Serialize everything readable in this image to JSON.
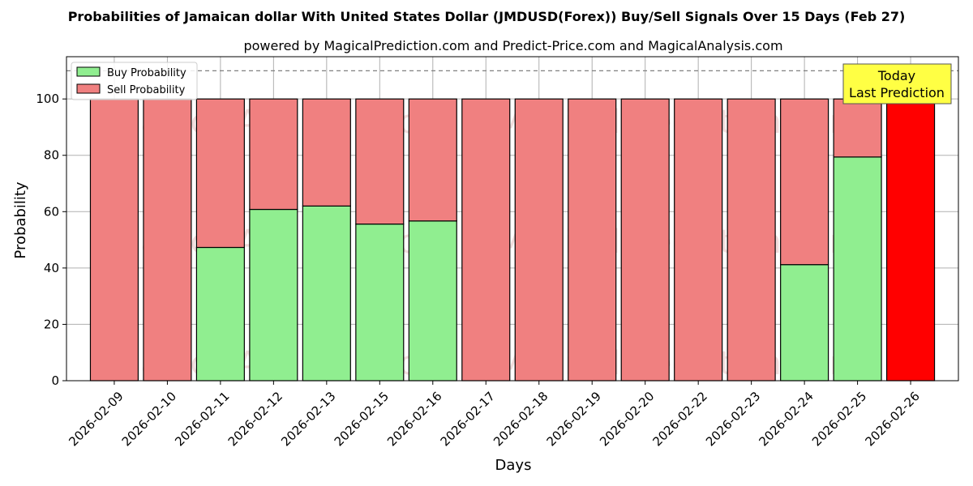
{
  "chart_data": {
    "type": "bar",
    "stacked": true,
    "title": "Probabilities of Jamaican dollar With United States Dollar (JMDUSD(Forex)) Buy/Sell Signals Over 15 Days (Feb 27)",
    "subtitle": "powered by MagicalPrediction.com and Predict-Price.com and MagicalAnalysis.com",
    "xlabel": "Days",
    "ylabel": "Probability",
    "ylim": [
      0,
      115
    ],
    "yticks": [
      0,
      20,
      40,
      60,
      80,
      100
    ],
    "grid": true,
    "legend_position": "top-left",
    "reference_line": 110,
    "categories": [
      "2026-02-09",
      "2026-02-10",
      "2026-02-11",
      "2026-02-12",
      "2026-02-13",
      "2026-02-15",
      "2026-02-16",
      "2026-02-17",
      "2026-02-18",
      "2026-02-19",
      "2026-02-20",
      "2026-02-22",
      "2026-02-23",
      "2026-02-24",
      "2026-02-25",
      "2026-02-26"
    ],
    "series": [
      {
        "name": "Buy Probability",
        "color": "#90ee90",
        "values": [
          0,
          0,
          47.3,
          60.8,
          62.0,
          55.6,
          56.7,
          0,
          0,
          0,
          0,
          0,
          0,
          41.2,
          79.4,
          0
        ]
      },
      {
        "name": "Sell Probability",
        "color": "#f08080",
        "values": [
          100,
          100,
          52.7,
          39.2,
          38.0,
          44.4,
          43.3,
          100,
          100,
          100,
          100,
          100,
          100,
          58.8,
          20.6,
          100
        ]
      }
    ],
    "highlight": {
      "index": 15,
      "color": "#ff0000"
    },
    "annotation": {
      "lines": [
        "Today",
        "Last Prediction"
      ],
      "background": "#ffff44"
    },
    "watermark": [
      "MagicalAnalysis.com",
      "MagicalPrediction.com"
    ]
  }
}
